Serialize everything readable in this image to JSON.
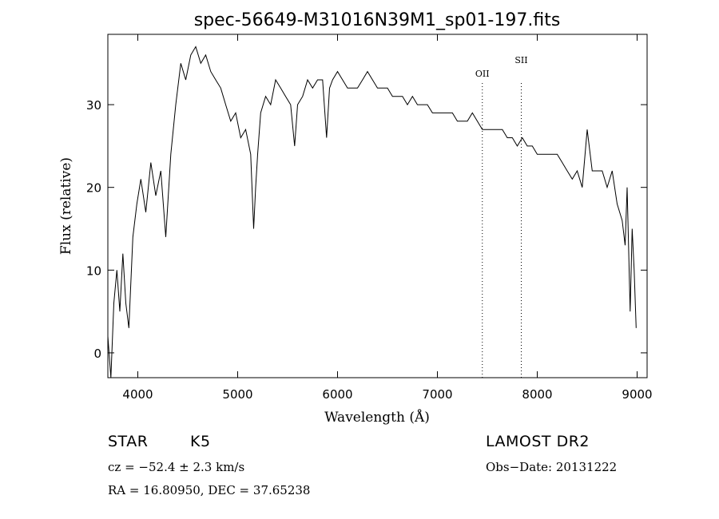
{
  "chart_data": {
    "type": "line",
    "title": "spec-56649-M31016N39M1_sp01-197.fits",
    "xlabel": "Wavelength (Å)",
    "ylabel": "Flux (relative)",
    "xlim": [
      3700,
      9100
    ],
    "ylim": [
      -3,
      38.5
    ],
    "xticks": [
      4000,
      5000,
      6000,
      7000,
      8000,
      9000
    ],
    "yticks": [
      0,
      10,
      20,
      30
    ],
    "grid": false,
    "line_color": "#000000",
    "lines": [
      {
        "label": "OII",
        "x": 7450
      },
      {
        "label": "SII",
        "x": 7840
      }
    ],
    "series": [
      {
        "x": [
          3700,
          3730,
          3760,
          3790,
          3820,
          3850,
          3880,
          3910,
          3950,
          3990,
          4030,
          4080,
          4130,
          4180,
          4230,
          4280,
          4330,
          4380,
          4430,
          4480,
          4530,
          4580,
          4630,
          4680,
          4730,
          4780,
          4830,
          4880,
          4930,
          4980,
          5030,
          5080,
          5130,
          5160,
          5180,
          5200,
          5230,
          5280,
          5330,
          5380,
          5430,
          5480,
          5530,
          5570,
          5600,
          5650,
          5700,
          5750,
          5800,
          5850,
          5890,
          5920,
          5950,
          6000,
          6050,
          6100,
          6150,
          6200,
          6250,
          6300,
          6350,
          6400,
          6450,
          6500,
          6550,
          6600,
          6650,
          6700,
          6750,
          6800,
          6850,
          6900,
          6950,
          7000,
          7050,
          7100,
          7150,
          7200,
          7250,
          7300,
          7350,
          7400,
          7450,
          7500,
          7550,
          7600,
          7650,
          7700,
          7750,
          7800,
          7850,
          7900,
          7950,
          8000,
          8050,
          8100,
          8150,
          8200,
          8250,
          8300,
          8350,
          8400,
          8450,
          8500,
          8550,
          8600,
          8650,
          8700,
          8750,
          8800,
          8850,
          8880,
          8900,
          8930,
          8950,
          8970,
          8990
        ],
        "y": [
          2,
          -3,
          6,
          10,
          5,
          12,
          6,
          3,
          14,
          18,
          21,
          17,
          23,
          19,
          22,
          14,
          24,
          30,
          35,
          33,
          36,
          37,
          35,
          36,
          34,
          33,
          32,
          30,
          28,
          29,
          26,
          27,
          24,
          15,
          20,
          24,
          29,
          31,
          30,
          33,
          32,
          31,
          30,
          25,
          30,
          31,
          33,
          32,
          33,
          33,
          26,
          32,
          33,
          34,
          33,
          32,
          32,
          32,
          33,
          34,
          33,
          32,
          32,
          32,
          31,
          31,
          31,
          30,
          31,
          30,
          30,
          30,
          29,
          29,
          29,
          29,
          29,
          28,
          28,
          28,
          29,
          28,
          27,
          27,
          27,
          27,
          27,
          26,
          26,
          25,
          26,
          25,
          25,
          24,
          24,
          24,
          24,
          24,
          23,
          22,
          21,
          22,
          20,
          27,
          22,
          22,
          22,
          20,
          22,
          18,
          16,
          13,
          20,
          5,
          15,
          10,
          3
        ]
      }
    ],
    "footer_left": {
      "line1_object": "STAR",
      "line1_class": "K5",
      "line2": "cz = −52.4 ± 2.3 km/s",
      "line3": "RA =  16.80950, DEC =  37.65238"
    },
    "footer_right": {
      "line1": "LAMOST DR2",
      "line2": "Obs−Date: 20131222"
    }
  }
}
